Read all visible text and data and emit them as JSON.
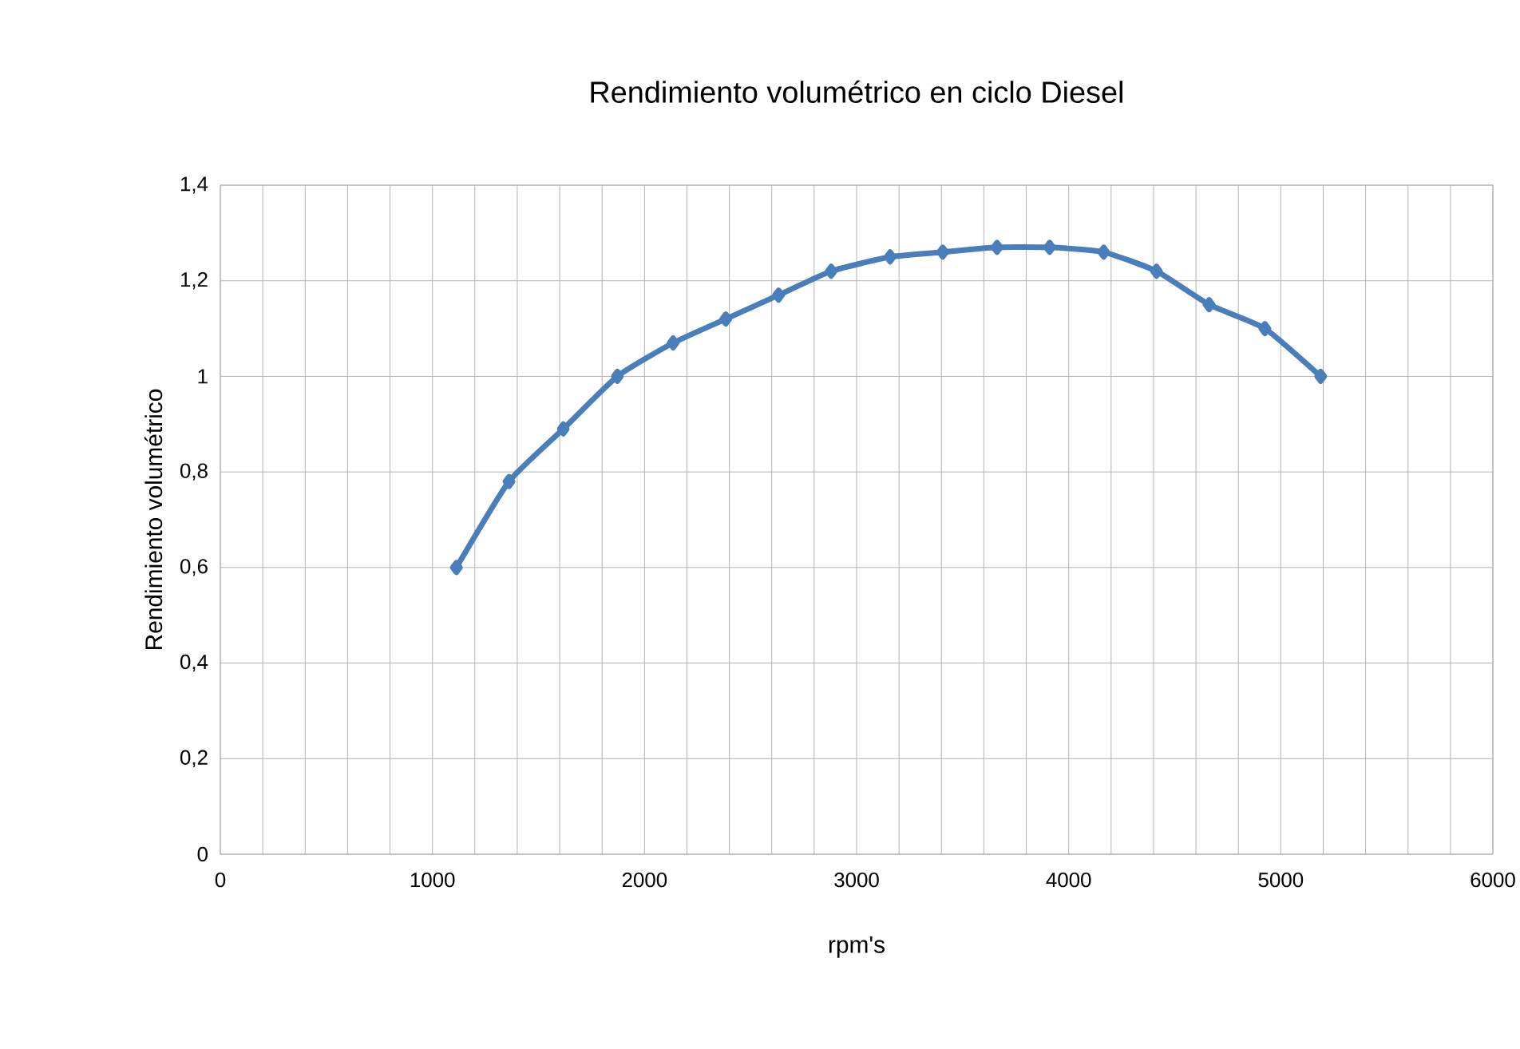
{
  "chart_data": {
    "type": "line",
    "title": "Rendimiento volumétrico en ciclo Diesel",
    "xlabel": "rpm's",
    "ylabel": "Rendimiento volumétrico",
    "x": [
      1113,
      1361,
      1617,
      1872,
      2135,
      2383,
      2632,
      2880,
      3158,
      3406,
      3662,
      3910,
      4165,
      4414,
      4662,
      4925,
      5188
    ],
    "series": [
      {
        "color": "#4a7ebb",
        "values": [
          0.6,
          0.78,
          0.89,
          1.0,
          1.07,
          1.12,
          1.17,
          1.22,
          1.25,
          1.26,
          1.27,
          1.27,
          1.26,
          1.22,
          1.15,
          1.1,
          1.0
        ]
      }
    ],
    "xlim": [
      0,
      6000
    ],
    "xticks": [
      0,
      {
        "value": 200,
        "label": null
      },
      {
        "value": 400,
        "label": null
      },
      {
        "value": 600,
        "label": null
      },
      {
        "value": 800,
        "label": null
      },
      1000,
      {
        "value": 1200,
        "label": null
      },
      {
        "value": 1400,
        "label": null
      },
      {
        "value": 1600,
        "label": null
      },
      {
        "value": 1800,
        "label": null
      },
      2000,
      {
        "value": 2200,
        "label": null
      },
      {
        "value": 2400,
        "label": null
      },
      {
        "value": 2600,
        "label": null
      },
      {
        "value": 2800,
        "label": null
      },
      3000,
      {
        "value": 3200,
        "label": null
      },
      {
        "value": 3400,
        "label": null
      },
      {
        "value": 3600,
        "label": null
      },
      {
        "value": 3800,
        "label": null
      },
      4000,
      {
        "value": 4200,
        "label": null
      },
      {
        "value": 4400,
        "label": null
      },
      {
        "value": 4600,
        "label": null
      },
      {
        "value": 4800,
        "label": null
      },
      5000,
      {
        "value": 5200,
        "label": null
      },
      {
        "value": 5400,
        "label": null
      },
      {
        "value": 5600,
        "label": null
      },
      {
        "value": 5800,
        "label": null
      },
      6000
    ],
    "ylim": [
      0,
      1.4
    ],
    "yticks": [
      0,
      {
        "value": 0.2,
        "label": "0,2"
      },
      {
        "value": 0.4,
        "label": "0,4"
      },
      {
        "value": 0.6,
        "label": "0,6"
      },
      {
        "value": 0.8,
        "label": "0,8"
      },
      1,
      {
        "value": 1.2,
        "label": "1,2"
      },
      {
        "value": 1.4,
        "label": "1,4"
      }
    ],
    "grid": true,
    "marker": "diamond",
    "line_style": "solid"
  }
}
